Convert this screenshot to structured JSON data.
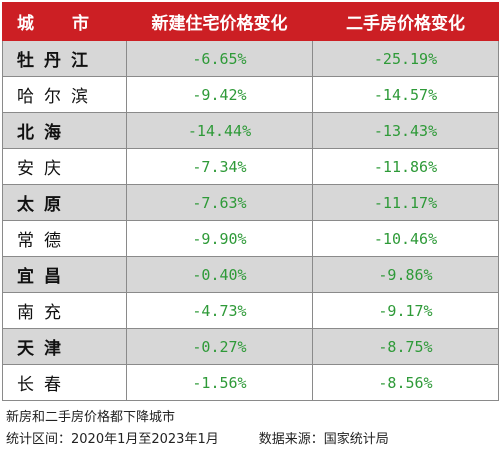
{
  "headers": {
    "city_prefix": "城",
    "city_suffix": "市",
    "new_home": "新建住宅价格变化",
    "second_hand": "二手房价格变化"
  },
  "rows": [
    {
      "city": "牡丹江",
      "new": "-6.65%",
      "second": "-25.19%"
    },
    {
      "city": "哈尔滨",
      "new": "-9.42%",
      "second": "-14.57%"
    },
    {
      "city": "北海",
      "new": "-14.44%",
      "second": "-13.43%"
    },
    {
      "city": "安庆",
      "new": "-7.34%",
      "second": "-11.86%"
    },
    {
      "city": "太原",
      "new": "-7.63%",
      "second": "-11.17%"
    },
    {
      "city": "常德",
      "new": "-9.90%",
      "second": "-10.46%"
    },
    {
      "city": "宜昌",
      "new": "-0.40%",
      "second": "-9.86%"
    },
    {
      "city": "南充",
      "new": "-4.73%",
      "second": "-9.17%"
    },
    {
      "city": "天津",
      "new": "-0.27%",
      "second": "-8.75%"
    },
    {
      "city": "长春",
      "new": "-1.56%",
      "second": "-8.56%"
    }
  ],
  "footer": {
    "caption": "新房和二手房价格都下降城市",
    "period": "统计区间：2020年1月至2023年1月",
    "source": "数据来源：国家统计局"
  },
  "colors": {
    "header_bg": "#cc1f24",
    "value_green": "#2e9a38",
    "stripe_gray": "#d7d7d7"
  }
}
